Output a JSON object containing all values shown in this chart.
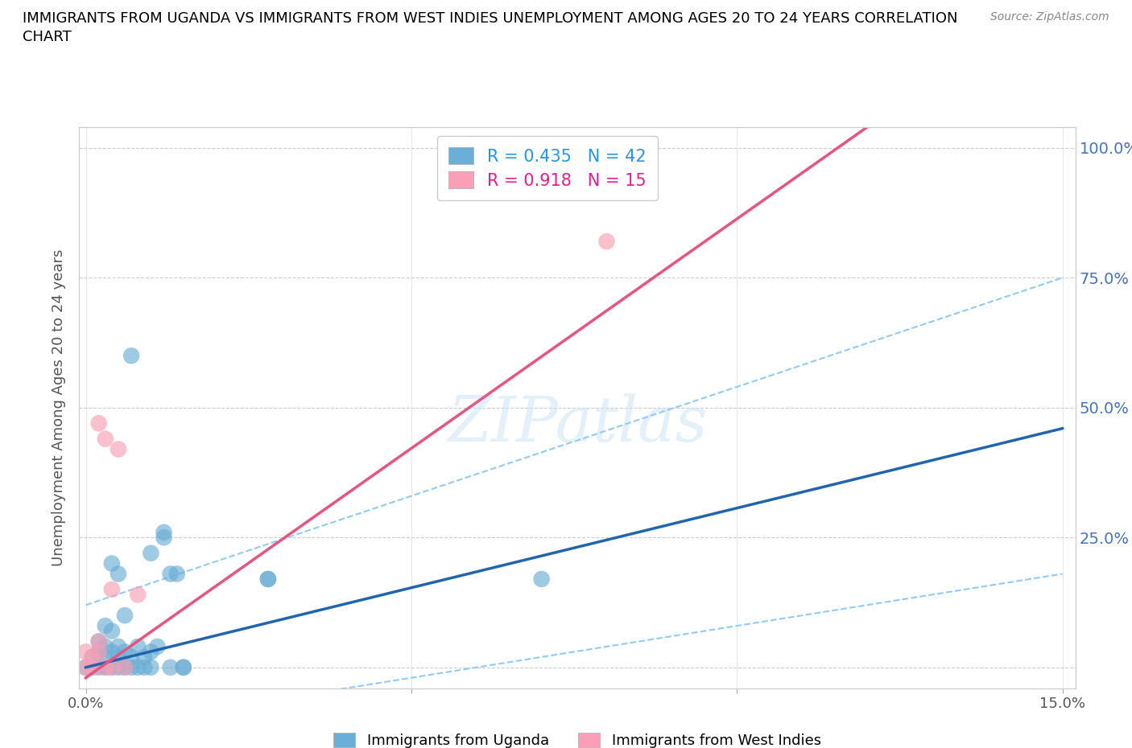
{
  "title_line1": "IMMIGRANTS FROM UGANDA VS IMMIGRANTS FROM WEST INDIES UNEMPLOYMENT AMONG AGES 20 TO 24 YEARS CORRELATION",
  "title_line2": "CHART",
  "source": "Source: ZipAtlas.com",
  "ylabel": "Unemployment Among Ages 20 to 24 years",
  "uganda_color": "#6baed6",
  "west_indies_color": "#fa9fb5",
  "uganda_line_color": "#2166ac",
  "west_indies_line_color": "#e75480",
  "ci_color": "#90CAF9",
  "uganda_R": 0.435,
  "uganda_N": 42,
  "west_indies_R": 0.918,
  "west_indies_N": 15,
  "legend_uganda_color": "#2196F3",
  "legend_wi_color": "#e91e8c",
  "watermark": "ZIPatlas",
  "xlim": [
    -0.001,
    0.152
  ],
  "ylim": [
    -0.04,
    1.04
  ],
  "uganda_scatter": [
    [
      0.0,
      0.0
    ],
    [
      0.001,
      0.0
    ],
    [
      0.001,
      0.02
    ],
    [
      0.002,
      0.0
    ],
    [
      0.002,
      0.03
    ],
    [
      0.002,
      0.05
    ],
    [
      0.003,
      0.0
    ],
    [
      0.003,
      0.02
    ],
    [
      0.003,
      0.04
    ],
    [
      0.003,
      0.08
    ],
    [
      0.004,
      0.0
    ],
    [
      0.004,
      0.03
    ],
    [
      0.004,
      0.07
    ],
    [
      0.004,
      0.2
    ],
    [
      0.005,
      0.0
    ],
    [
      0.005,
      0.02
    ],
    [
      0.005,
      0.04
    ],
    [
      0.005,
      0.18
    ],
    [
      0.006,
      0.0
    ],
    [
      0.006,
      0.03
    ],
    [
      0.006,
      0.1
    ],
    [
      0.007,
      0.0
    ],
    [
      0.007,
      0.02
    ],
    [
      0.007,
      0.6
    ],
    [
      0.008,
      0.0
    ],
    [
      0.008,
      0.04
    ],
    [
      0.009,
      0.0
    ],
    [
      0.009,
      0.02
    ],
    [
      0.01,
      0.0
    ],
    [
      0.01,
      0.03
    ],
    [
      0.01,
      0.22
    ],
    [
      0.011,
      0.04
    ],
    [
      0.012,
      0.25
    ],
    [
      0.012,
      0.26
    ],
    [
      0.013,
      0.0
    ],
    [
      0.013,
      0.18
    ],
    [
      0.014,
      0.18
    ],
    [
      0.015,
      0.0
    ],
    [
      0.015,
      0.0
    ],
    [
      0.028,
      0.17
    ],
    [
      0.028,
      0.17
    ],
    [
      0.07,
      0.17
    ]
  ],
  "west_indies_scatter": [
    [
      0.0,
      0.0
    ],
    [
      0.0,
      0.03
    ],
    [
      0.001,
      0.0
    ],
    [
      0.001,
      0.02
    ],
    [
      0.002,
      0.03
    ],
    [
      0.002,
      0.05
    ],
    [
      0.002,
      0.47
    ],
    [
      0.003,
      0.0
    ],
    [
      0.003,
      0.44
    ],
    [
      0.004,
      0.0
    ],
    [
      0.004,
      0.15
    ],
    [
      0.005,
      0.42
    ],
    [
      0.006,
      0.0
    ],
    [
      0.008,
      0.14
    ],
    [
      0.08,
      0.82
    ]
  ],
  "uganda_line": [
    0.0,
    0.0,
    0.15,
    0.46
  ],
  "west_indies_line": [
    0.0,
    -0.02,
    0.12,
    1.04
  ],
  "ci_upper": [
    0.0,
    0.12,
    0.15,
    0.75
  ],
  "ci_lower": [
    0.0,
    -0.12,
    0.15,
    0.18
  ]
}
